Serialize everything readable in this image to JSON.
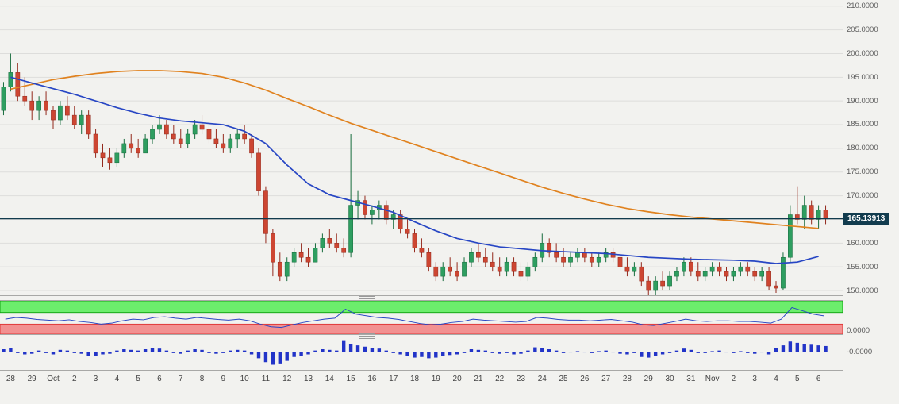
{
  "colors": {
    "bg": "#f2f2ef",
    "grid": "#dddddb",
    "up": "#2e9e60",
    "up_border": "#166b3c",
    "down": "#cd4632",
    "down_border": "#93291c",
    "ma_fast": "#2746c4",
    "ma_slow": "#e0821f",
    "price_line": "#123c4e",
    "tag_bg": "#123c4e",
    "tag_text": "#ffffff",
    "band_green": "#6cee6c",
    "band_green_border": "#12a312",
    "band_red": "#f29191",
    "band_red_border": "#e03535",
    "hist": "#2234c8",
    "axis_text": "#5a5a5a",
    "panel_border": "#a8a8a6"
  },
  "price_axis": {
    "ticks": [
      "210.0000",
      "205.0000",
      "200.0000",
      "195.0000",
      "190.0000",
      "185.0000",
      "180.0000",
      "175.0000",
      "170.0000",
      "165.0000",
      "160.0000",
      "155.0000",
      "150.0000"
    ]
  },
  "price_line": {
    "value": 165.13913,
    "label": "165.13913"
  },
  "panels": {
    "oscillator": {
      "tick": "0.0000"
    },
    "histogram": {
      "tick": "-0.0000"
    }
  },
  "x_axis": {
    "labels": [
      "28",
      "29",
      "Oct",
      "2",
      "3",
      "4",
      "5",
      "6",
      "7",
      "8",
      "9",
      "10",
      "11",
      "12",
      "13",
      "14",
      "15",
      "16",
      "17",
      "18",
      "19",
      "20",
      "21",
      "22",
      "23",
      "24",
      "25",
      "26",
      "27",
      "28",
      "29",
      "30",
      "31",
      "Nov",
      "2",
      "3",
      "4",
      "5",
      "6"
    ]
  },
  "chart_data": [
    {
      "type": "candlestick",
      "title": "",
      "ylabel": "",
      "ylim": [
        149,
        211.3
      ],
      "hline": 165.13913,
      "x_labels": [
        "28",
        "29",
        "Oct",
        "2",
        "3",
        "4",
        "5",
        "6",
        "7",
        "8",
        "9",
        "10",
        "11",
        "12",
        "13",
        "14",
        "15",
        "16",
        "17",
        "18",
        "19",
        "20",
        "21",
        "22",
        "23",
        "24",
        "25",
        "26",
        "27",
        "28",
        "29",
        "30",
        "31",
        "Nov",
        "2",
        "3",
        "4",
        "5",
        "6"
      ],
      "candles_per_day": 3,
      "ohlc": [
        [
          188,
          194,
          187,
          193
        ],
        [
          193,
          200,
          192,
          196
        ],
        [
          196,
          198,
          190,
          191
        ],
        [
          191,
          195,
          189,
          190
        ],
        [
          190,
          192,
          186,
          188
        ],
        [
          188,
          191,
          186,
          190
        ],
        [
          190,
          192,
          187,
          188
        ],
        [
          188,
          189,
          184,
          186
        ],
        [
          186,
          190,
          185,
          189
        ],
        [
          189,
          191,
          186,
          187
        ],
        [
          187,
          189,
          184,
          185
        ],
        [
          185,
          188,
          183,
          187
        ],
        [
          187,
          188,
          182,
          183
        ],
        [
          183,
          184,
          178,
          179
        ],
        [
          179,
          181,
          176,
          178
        ],
        [
          178,
          180,
          175.5,
          177
        ],
        [
          177,
          180,
          176,
          179
        ],
        [
          179,
          182,
          178,
          181
        ],
        [
          181,
          183,
          179,
          180
        ],
        [
          180,
          182,
          178,
          179
        ],
        [
          179,
          183,
          179,
          182
        ],
        [
          182,
          185,
          181,
          184
        ],
        [
          184,
          187,
          183,
          185
        ],
        [
          185,
          186,
          182,
          183
        ],
        [
          183,
          185,
          181,
          182
        ],
        [
          182,
          184,
          180,
          181
        ],
        [
          181,
          184,
          180,
          183
        ],
        [
          183,
          186,
          182,
          185
        ],
        [
          185,
          187,
          183,
          184
        ],
        [
          184,
          185,
          181,
          182
        ],
        [
          182,
          184,
          180,
          181
        ],
        [
          181,
          183,
          179,
          180
        ],
        [
          180,
          183,
          179,
          182
        ],
        [
          182,
          184,
          180,
          183
        ],
        [
          183,
          185,
          181,
          182
        ],
        [
          182,
          183,
          178,
          179
        ],
        [
          179,
          180,
          170,
          171
        ],
        [
          171,
          172,
          160,
          162
        ],
        [
          162,
          163,
          153,
          156
        ],
        [
          156,
          158,
          152,
          153
        ],
        [
          153,
          157,
          152,
          156
        ],
        [
          156,
          159,
          155,
          158
        ],
        [
          158,
          160,
          156,
          157
        ],
        [
          157,
          159,
          155,
          156
        ],
        [
          156,
          160,
          156,
          159
        ],
        [
          159,
          162,
          158,
          161
        ],
        [
          161,
          163,
          159,
          160
        ],
        [
          160,
          162,
          158,
          159
        ],
        [
          159,
          161,
          157,
          158
        ],
        [
          158,
          183,
          157,
          168
        ],
        [
          168,
          171,
          165,
          169
        ],
        [
          169,
          170,
          165,
          166
        ],
        [
          166,
          168,
          164,
          167
        ],
        [
          167,
          169,
          165,
          168
        ],
        [
          168,
          169,
          164,
          165
        ],
        [
          165,
          167,
          163,
          166
        ],
        [
          166,
          167,
          162,
          163
        ],
        [
          163,
          165,
          161,
          162
        ],
        [
          162,
          163,
          158,
          159
        ],
        [
          159,
          161,
          157,
          158
        ],
        [
          158,
          159,
          154,
          155
        ],
        [
          155,
          156,
          152,
          153
        ],
        [
          153,
          156,
          152,
          155
        ],
        [
          155,
          157,
          153,
          154
        ],
        [
          154,
          156,
          152,
          153
        ],
        [
          153,
          157,
          153,
          156
        ],
        [
          156,
          159,
          155,
          158
        ],
        [
          158,
          160,
          156,
          157
        ],
        [
          157,
          159,
          155,
          156
        ],
        [
          156,
          158,
          154,
          155
        ],
        [
          155,
          157,
          153,
          154
        ],
        [
          154,
          157,
          153,
          156
        ],
        [
          156,
          157,
          153,
          154
        ],
        [
          154,
          156,
          152,
          153
        ],
        [
          153,
          156,
          152,
          155
        ],
        [
          155,
          158,
          154,
          157
        ],
        [
          157,
          162,
          156,
          160
        ],
        [
          160,
          161,
          157,
          158
        ],
        [
          158,
          160,
          156,
          157
        ],
        [
          157,
          159,
          155,
          156
        ],
        [
          156,
          158,
          155,
          157
        ],
        [
          157,
          159,
          156,
          158
        ],
        [
          158,
          159,
          156,
          157
        ],
        [
          157,
          158,
          155,
          156
        ],
        [
          156,
          158,
          155,
          157
        ],
        [
          157,
          159,
          156,
          158
        ],
        [
          158,
          159,
          156,
          157
        ],
        [
          157,
          158,
          154,
          155
        ],
        [
          155,
          157,
          153,
          154
        ],
        [
          154,
          156,
          153,
          155
        ],
        [
          155,
          156,
          151,
          152
        ],
        [
          152,
          153,
          149,
          150
        ],
        [
          150,
          153,
          149,
          152
        ],
        [
          152,
          154,
          150,
          151
        ],
        [
          151,
          154,
          150,
          153
        ],
        [
          153,
          155,
          152,
          154
        ],
        [
          154,
          157,
          153,
          156
        ],
        [
          156,
          157,
          153,
          154
        ],
        [
          154,
          156,
          152,
          153
        ],
        [
          153,
          155,
          152,
          154
        ],
        [
          154,
          156,
          153,
          155
        ],
        [
          155,
          156,
          153,
          154
        ],
        [
          154,
          155,
          152,
          153
        ],
        [
          153,
          155,
          152,
          154
        ],
        [
          154,
          156,
          153,
          155
        ],
        [
          155,
          156,
          153,
          154
        ],
        [
          154,
          155,
          152,
          153
        ],
        [
          153,
          155,
          152,
          154
        ],
        [
          154,
          155,
          150,
          151
        ],
        [
          151,
          152,
          149.5,
          150.5
        ],
        [
          150.5,
          158,
          150,
          157
        ],
        [
          157,
          168,
          156,
          166
        ],
        [
          166,
          172,
          164,
          165
        ],
        [
          165,
          170,
          163,
          168
        ],
        [
          168,
          169,
          164,
          165
        ],
        [
          165,
          168,
          163,
          167
        ],
        [
          167,
          168,
          164,
          165.14
        ]
      ],
      "ma_fast": {
        "name": "moving-average-blue",
        "color": "#2746c4",
        "values": [
          195,
          193.8,
          192.6,
          191.4,
          190,
          188.6,
          187.4,
          186.4,
          185.8,
          185.4,
          185,
          183.6,
          181,
          176.5,
          172.5,
          170.2,
          169,
          167.8,
          166.5,
          164.5,
          162.6,
          161,
          160,
          159.2,
          158.8,
          158.4,
          158.2,
          158,
          157.8,
          157.4,
          157,
          156.8,
          156.6,
          156.5,
          156.4,
          156.2,
          155.7,
          156,
          157.2
        ]
      },
      "ma_slow": {
        "name": "moving-average-orange",
        "color": "#e0821f",
        "values": [
          192.5,
          193.5,
          194.5,
          195.2,
          195.8,
          196.2,
          196.4,
          196.4,
          196.2,
          195.8,
          195,
          193.8,
          192.3,
          190.5,
          188.8,
          187,
          185.3,
          183.8,
          182.3,
          180.8,
          179.3,
          177.8,
          176.3,
          174.8,
          173.3,
          171.8,
          170.5,
          169.3,
          168.2,
          167.3,
          166.6,
          166,
          165.5,
          165.1,
          164.7,
          164.3,
          163.9,
          163.5,
          163.1
        ]
      }
    },
    {
      "type": "line",
      "name": "oscillator",
      "color": "#2746c4",
      "ylim": [
        0,
        1
      ],
      "bands": {
        "green": [
          0.65,
          1
        ],
        "red": [
          0,
          0.3
        ]
      },
      "tick_label": "0.0000",
      "values": [
        0.45,
        0.5,
        0.48,
        0.44,
        0.42,
        0.4,
        0.43,
        0.38,
        0.35,
        0.3,
        0.33,
        0.4,
        0.45,
        0.43,
        0.5,
        0.52,
        0.48,
        0.45,
        0.5,
        0.47,
        0.44,
        0.42,
        0.45,
        0.4,
        0.3,
        0.22,
        0.2,
        0.28,
        0.35,
        0.4,
        0.45,
        0.48,
        0.75,
        0.6,
        0.55,
        0.5,
        0.48,
        0.44,
        0.38,
        0.32,
        0.28,
        0.3,
        0.35,
        0.38,
        0.45,
        0.42,
        0.4,
        0.38,
        0.36,
        0.38,
        0.5,
        0.48,
        0.44,
        0.42,
        0.42,
        0.4,
        0.42,
        0.44,
        0.4,
        0.36,
        0.28,
        0.26,
        0.32,
        0.38,
        0.45,
        0.4,
        0.38,
        0.4,
        0.4,
        0.38,
        0.38,
        0.36,
        0.33,
        0.45,
        0.8,
        0.7,
        0.6,
        0.55
      ]
    },
    {
      "type": "bar",
      "name": "histogram",
      "color": "#2234c8",
      "ylim": [
        -1.4,
        1.0
      ],
      "tick_label": "-0.0000",
      "values": [
        0.2,
        0.3,
        -0.1,
        -0.2,
        -0.15,
        0.1,
        -0.1,
        -0.2,
        0.15,
        0.1,
        -0.1,
        -0.15,
        -0.3,
        -0.35,
        -0.2,
        -0.15,
        0.1,
        0.2,
        0.15,
        0.1,
        0.2,
        0.3,
        0.25,
        0.1,
        -0.1,
        -0.15,
        0.1,
        0.2,
        0.15,
        -0.1,
        -0.15,
        -0.1,
        0.1,
        0.15,
        0.1,
        -0.2,
        -0.5,
        -0.8,
        -1.0,
        -0.9,
        -0.7,
        -0.4,
        -0.3,
        -0.2,
        0.1,
        0.2,
        0.15,
        0.1,
        0.9,
        0.6,
        0.5,
        0.4,
        0.3,
        0.25,
        0.1,
        -0.1,
        -0.2,
        -0.3,
        -0.45,
        -0.4,
        -0.5,
        -0.45,
        -0.3,
        -0.25,
        -0.2,
        -0.1,
        0.2,
        0.15,
        0.1,
        -0.1,
        -0.15,
        -0.1,
        -0.2,
        -0.15,
        0.1,
        0.35,
        0.3,
        0.2,
        0.1,
        -0.1,
        -0.05,
        0.05,
        -0.05,
        -0.1,
        0.05,
        0.1,
        -0.05,
        -0.15,
        -0.2,
        -0.1,
        -0.4,
        -0.45,
        -0.3,
        -0.2,
        -0.1,
        0.1,
        0.25,
        0.15,
        -0.1,
        -0.1,
        0.05,
        0.1,
        -0.05,
        -0.1,
        0.05,
        -0.1,
        -0.15,
        -0.05,
        -0.2,
        0.3,
        0.5,
        0.8,
        0.7,
        0.6,
        0.55,
        0.5,
        0.45
      ]
    }
  ]
}
